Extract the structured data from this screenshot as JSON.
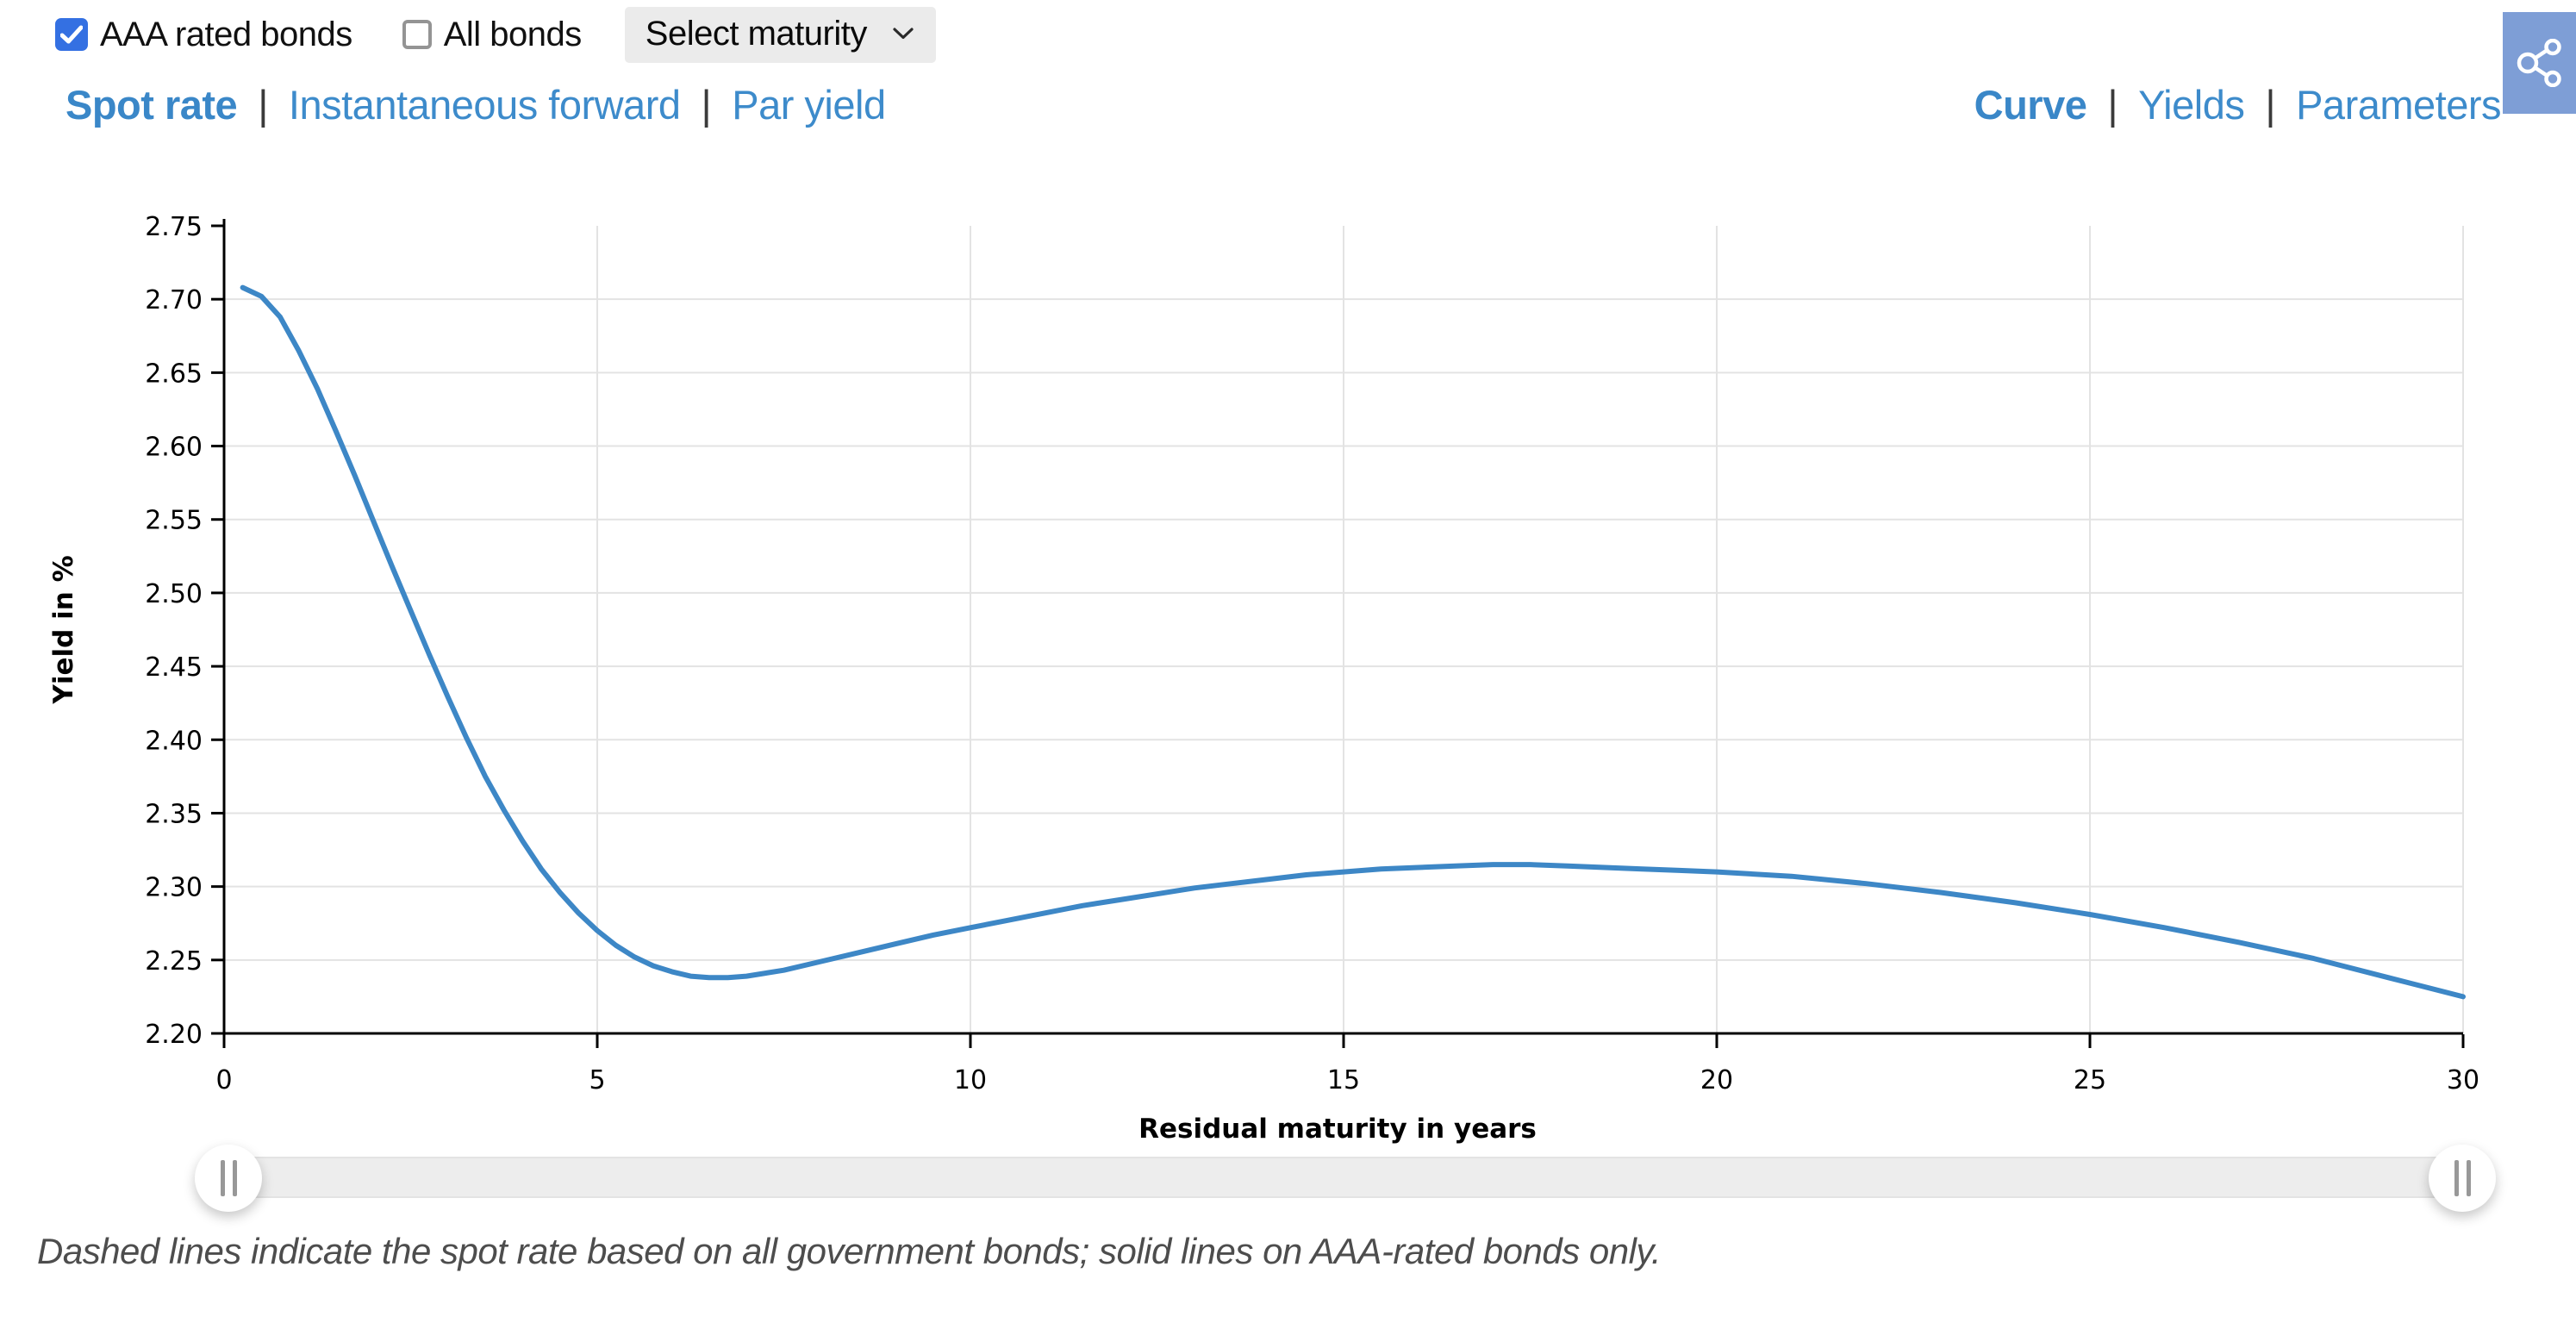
{
  "controls": {
    "aaa_checkbox": {
      "label": "AAA rated bonds",
      "checked": true
    },
    "all_bonds_checkbox": {
      "label": "All bonds",
      "checked": false
    },
    "maturity_select": {
      "value": "Select maturity"
    }
  },
  "view_tabs": {
    "separator": "|",
    "left": [
      {
        "label": "Spot rate",
        "active": true
      },
      {
        "label": "Instantaneous forward",
        "active": false
      },
      {
        "label": "Par yield",
        "active": false
      }
    ],
    "right": [
      {
        "label": "Curve",
        "active": true
      },
      {
        "label": "Yields",
        "active": false
      },
      {
        "label": "Parameters",
        "active": false
      }
    ]
  },
  "share_button": {
    "icon": "share-nodes-icon",
    "color": "#7e9ed6"
  },
  "chart_data": {
    "type": "line",
    "title": "",
    "xlabel": "Residual maturity in years",
    "ylabel": "Yield in %",
    "xlim": [
      0,
      30
    ],
    "ylim": [
      2.2,
      2.75
    ],
    "xticks": [
      0,
      5,
      10,
      15,
      20,
      25,
      30
    ],
    "yticks": [
      2.2,
      2.25,
      2.3,
      2.35,
      2.4,
      2.45,
      2.5,
      2.55,
      2.6,
      2.65,
      2.7,
      2.75
    ],
    "grid": true,
    "legend_position": "none",
    "series": [
      {
        "name": "AAA rated bonds spot rate",
        "style": "solid",
        "color": "#3d87c6",
        "points": [
          [
            0.25,
            2.708
          ],
          [
            0.5,
            2.702
          ],
          [
            0.75,
            2.688
          ],
          [
            1.0,
            2.665
          ],
          [
            1.25,
            2.639
          ],
          [
            1.5,
            2.61
          ],
          [
            1.75,
            2.58
          ],
          [
            2.0,
            2.549
          ],
          [
            2.25,
            2.518
          ],
          [
            2.5,
            2.488
          ],
          [
            2.75,
            2.458
          ],
          [
            3.0,
            2.429
          ],
          [
            3.25,
            2.401
          ],
          [
            3.5,
            2.375
          ],
          [
            3.75,
            2.352
          ],
          [
            4.0,
            2.331
          ],
          [
            4.25,
            2.312
          ],
          [
            4.5,
            2.296
          ],
          [
            4.75,
            2.282
          ],
          [
            5.0,
            2.27
          ],
          [
            5.25,
            2.26
          ],
          [
            5.5,
            2.252
          ],
          [
            5.75,
            2.246
          ],
          [
            6.0,
            2.242
          ],
          [
            6.25,
            2.239
          ],
          [
            6.5,
            2.238
          ],
          [
            6.75,
            2.238
          ],
          [
            7.0,
            2.239
          ],
          [
            7.5,
            2.243
          ],
          [
            8.0,
            2.249
          ],
          [
            8.5,
            2.255
          ],
          [
            9.0,
            2.261
          ],
          [
            9.5,
            2.267
          ],
          [
            10.0,
            2.272
          ],
          [
            10.5,
            2.277
          ],
          [
            11.0,
            2.282
          ],
          [
            11.5,
            2.287
          ],
          [
            12.0,
            2.291
          ],
          [
            12.5,
            2.295
          ],
          [
            13.0,
            2.299
          ],
          [
            13.5,
            2.302
          ],
          [
            14.0,
            2.305
          ],
          [
            14.5,
            2.308
          ],
          [
            15.0,
            2.31
          ],
          [
            15.5,
            2.312
          ],
          [
            16.0,
            2.313
          ],
          [
            16.5,
            2.314
          ],
          [
            17.0,
            2.315
          ],
          [
            17.5,
            2.315
          ],
          [
            18.0,
            2.314
          ],
          [
            18.5,
            2.313
          ],
          [
            19.0,
            2.312
          ],
          [
            19.5,
            2.311
          ],
          [
            20.0,
            2.31
          ],
          [
            21.0,
            2.307
          ],
          [
            22.0,
            2.302
          ],
          [
            23.0,
            2.296
          ],
          [
            24.0,
            2.289
          ],
          [
            25.0,
            2.281
          ],
          [
            26.0,
            2.272
          ],
          [
            27.0,
            2.262
          ],
          [
            28.0,
            2.251
          ],
          [
            29.0,
            2.238
          ],
          [
            30.0,
            2.225
          ]
        ]
      }
    ]
  },
  "slider": {
    "type": "range",
    "handles": [
      "left",
      "right"
    ]
  },
  "footnote": "Dashed lines indicate the spot rate based on all government bonds; solid lines on AAA-rated bonds only."
}
